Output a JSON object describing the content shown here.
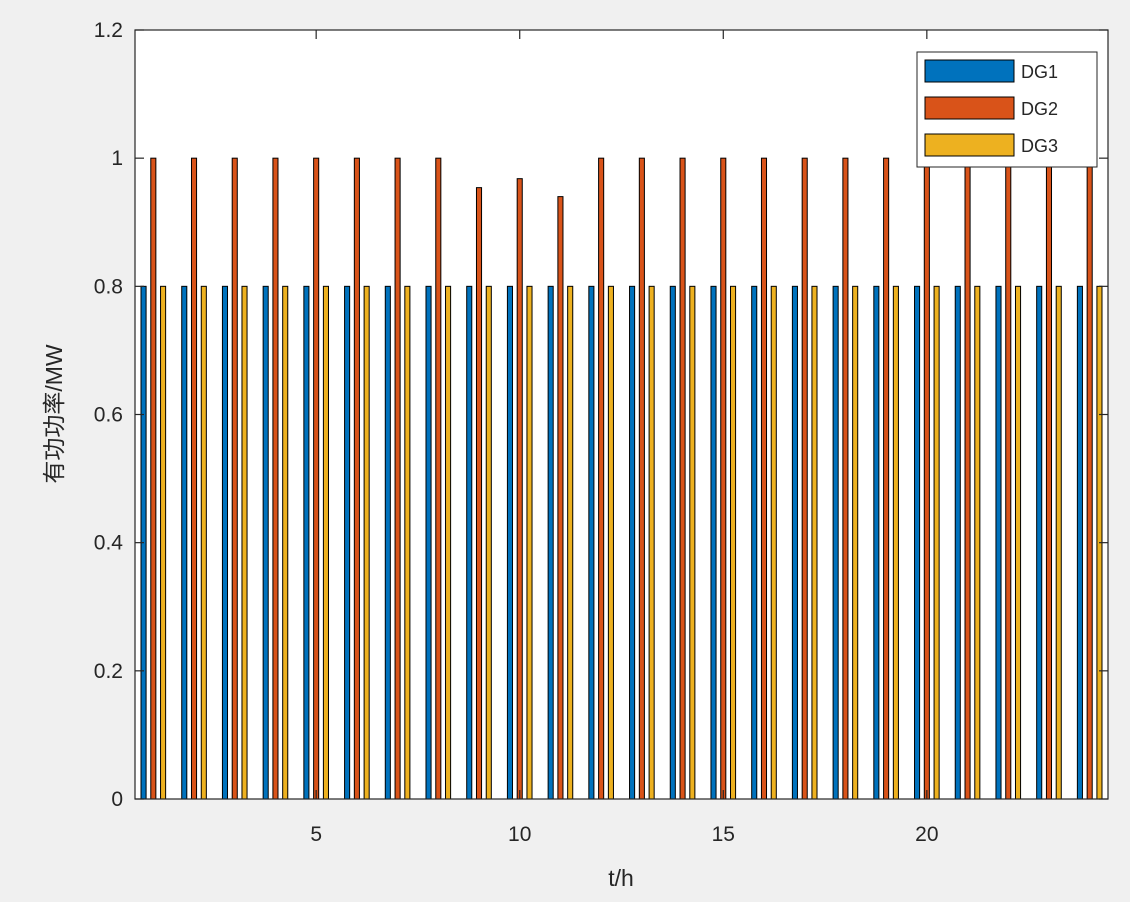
{
  "chart_data": {
    "type": "bar",
    "title": "",
    "xlabel": "t/h",
    "ylabel": "有功功率/MW",
    "xlim": [
      0.55,
      24.45
    ],
    "ylim": [
      0,
      1.2
    ],
    "x": [
      1,
      2,
      3,
      4,
      5,
      6,
      7,
      8,
      9,
      10,
      11,
      12,
      13,
      14,
      15,
      16,
      17,
      18,
      19,
      20,
      21,
      22,
      23,
      24
    ],
    "xticks": [
      5,
      10,
      15,
      20
    ],
    "yticks": [
      0,
      0.2,
      0.4,
      0.6,
      0.8,
      1,
      1.2
    ],
    "ytick_labels": [
      "0",
      "0.2",
      "0.4",
      "0.6",
      "0.8",
      "1",
      "1.2"
    ],
    "grid": false,
    "legend_position": "top-right",
    "series": [
      {
        "name": "DG1",
        "color": "#0072bd",
        "values": [
          0.8,
          0.8,
          0.8,
          0.8,
          0.8,
          0.8,
          0.8,
          0.8,
          0.8,
          0.8,
          0.8,
          0.8,
          0.8,
          0.8,
          0.8,
          0.8,
          0.8,
          0.8,
          0.8,
          0.8,
          0.8,
          0.8,
          0.8,
          0.8
        ]
      },
      {
        "name": "DG2",
        "color": "#d95319",
        "values": [
          1,
          1,
          1,
          1,
          1,
          1,
          1,
          1,
          0.954,
          0.968,
          0.94,
          1,
          1,
          1,
          1,
          1,
          1,
          1,
          1,
          1,
          1,
          1,
          1,
          1
        ]
      },
      {
        "name": "DG3",
        "color": "#edb120",
        "values": [
          0.8,
          0.8,
          0.8,
          0.8,
          0.8,
          0.8,
          0.8,
          0.8,
          0.8,
          0.8,
          0.8,
          0.8,
          0.8,
          0.8,
          0.8,
          0.8,
          0.8,
          0.8,
          0.8,
          0.8,
          0.8,
          0.8,
          0.8,
          0.8
        ]
      }
    ]
  }
}
